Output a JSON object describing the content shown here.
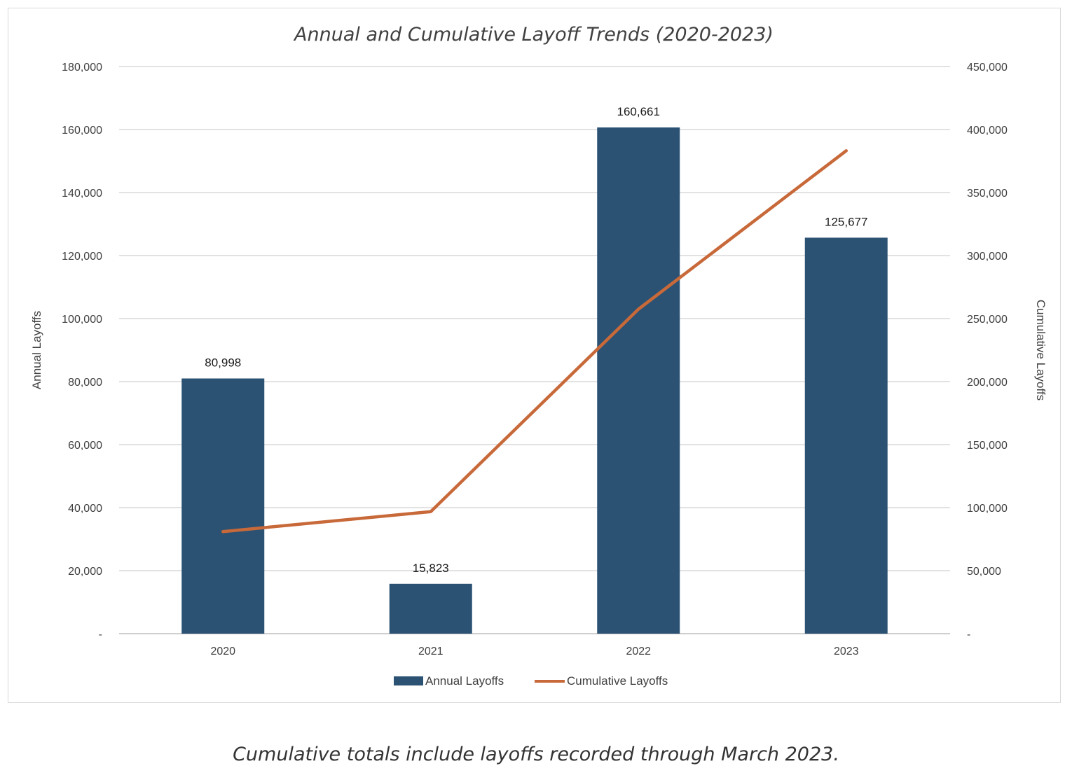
{
  "chart_data": {
    "type": "bar",
    "title": "Annual and Cumulative Layoff Trends (2020-2023)",
    "categories": [
      "2020",
      "2021",
      "2022",
      "2023"
    ],
    "series": [
      {
        "name": "Annual Layoffs",
        "type": "bar",
        "axis": "left",
        "color": "#2b5273",
        "values": [
          80998,
          15823,
          160661,
          125677
        ],
        "labels": [
          "80,998",
          "15,823",
          "160,661",
          "125,677"
        ]
      },
      {
        "name": "Cumulative Layoffs",
        "type": "line",
        "axis": "right",
        "color": "#c8693a",
        "values": [
          80998,
          96821,
          257482,
          383159
        ]
      }
    ],
    "ylabel_left": "Annual Layoffs",
    "ylabel_right": "Cumulative Layoffs",
    "ylim_left": [
      0,
      180000
    ],
    "ylim_right": [
      0,
      450000
    ],
    "yticks_left": [
      "-",
      "20,000",
      "40,000",
      "60,000",
      "80,000",
      "100,000",
      "120,000",
      "140,000",
      "160,000",
      "180,000"
    ],
    "yticks_right": [
      "-",
      "50,000",
      "100,000",
      "150,000",
      "200,000",
      "250,000",
      "300,000",
      "350,000",
      "400,000",
      "450,000"
    ],
    "grid": true,
    "legend_position": "bottom"
  },
  "caption": "Cumulative totals include layoffs recorded through March 2023."
}
